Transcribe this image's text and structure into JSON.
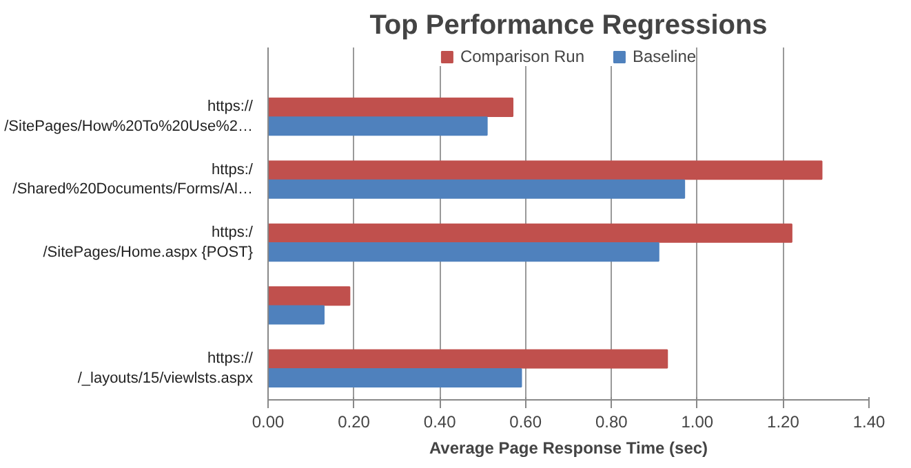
{
  "chart_data": {
    "type": "bar",
    "orientation": "horizontal",
    "title": "Top Performance Regressions",
    "xlabel": "Average Page Response Time (sec)",
    "categories": [
      "https://\n/SitePages/How%20To%20Use%2…",
      "https:/\n/Shared%20Documents/Forms/Al…",
      "https:/\n/SitePages/Home.aspx {POST}",
      null,
      "https://\n/_layouts/15/viewlsts.aspx"
    ],
    "series": [
      {
        "name": "Comparison Run",
        "color": "#c0504d",
        "values": [
          0.57,
          1.29,
          1.22,
          0.19,
          0.93
        ]
      },
      {
        "name": "Baseline",
        "color": "#4f81bd",
        "values": [
          0.51,
          0.97,
          0.91,
          0.13,
          0.59
        ]
      }
    ],
    "xlim": [
      0,
      1.4
    ],
    "xticks": [
      {
        "value": 0,
        "label": "0.00"
      },
      {
        "value": 0.2,
        "label": "0.20"
      },
      {
        "value": 0.4,
        "label": "0.40"
      },
      {
        "value": 0.6,
        "label": "0.60"
      },
      {
        "value": 0.8,
        "label": "0.80"
      },
      {
        "value": 1.0,
        "label": "1.00"
      },
      {
        "value": 1.2,
        "label": "1.20"
      },
      {
        "value": 1.4,
        "label": "1.40"
      }
    ],
    "grid": "x",
    "legend": "top"
  }
}
